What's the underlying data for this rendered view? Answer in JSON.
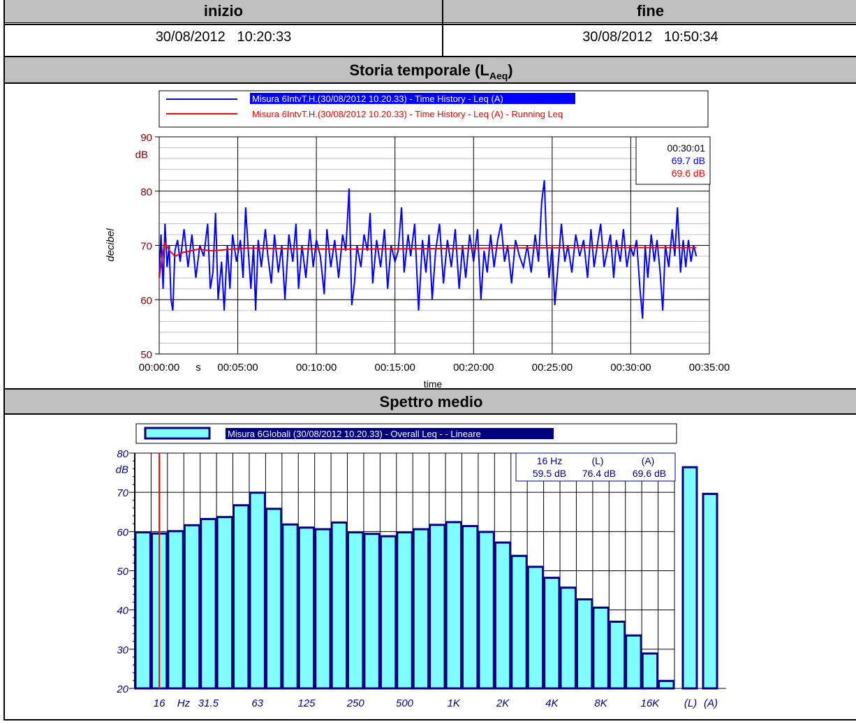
{
  "header": {
    "start_label": "inizio",
    "end_label": "fine",
    "start_value": "30/08/2012   10:20:33",
    "end_value": "30/08/2012   10:50:34"
  },
  "section1": {
    "title_main": "Storia temporale (L",
    "title_sub": "Aeq",
    "title_close": ")"
  },
  "section2": {
    "title": "Spettro medio"
  },
  "colors": {
    "blue": "#0000ff",
    "red": "#ff0000",
    "axis_dark_red": "#800000",
    "navy": "#000080",
    "bar_fill": "#80ffff",
    "header_gray": "#c0c0c0"
  },
  "chart_data": [
    {
      "type": "line",
      "xlabel": "time",
      "ylabel": "decibel",
      "y_unit": "dB",
      "ylim": [
        50,
        90
      ],
      "xlim_seconds": [
        0,
        2100
      ],
      "y_ticks": [
        "50",
        "60",
        "70",
        "80",
        "90"
      ],
      "x_ticks": [
        "00:00:00",
        "s",
        "00:05:00",
        "00:10:00",
        "00:15:00",
        "00:20:00",
        "00:25:00",
        "00:30:00",
        "00:35:00"
      ],
      "grid": true,
      "legend_position": "top",
      "series": [
        {
          "name": "Misura 6IntvT.H.(30/08/2012 10.20.33) - Time History - Leq (A)",
          "color": "#0000ff"
        },
        {
          "name": "Misura 6IntvT.H.(30/08/2012 10.20.33) - Time History - Leq (A) - Running Leq",
          "color": "#ff0000"
        }
      ],
      "blue_points": [
        [
          0,
          64
        ],
        [
          7,
          72
        ],
        [
          15,
          62
        ],
        [
          22,
          74
        ],
        [
          30,
          66
        ],
        [
          38,
          70
        ],
        [
          45,
          60
        ],
        [
          52,
          58
        ],
        [
          60,
          69
        ],
        [
          70,
          71
        ],
        [
          80,
          67
        ],
        [
          95,
          73
        ],
        [
          110,
          66
        ],
        [
          125,
          72
        ],
        [
          140,
          64
        ],
        [
          155,
          70
        ],
        [
          170,
          68
        ],
        [
          185,
          74
        ],
        [
          195,
          62
        ],
        [
          205,
          65
        ],
        [
          215,
          76
        ],
        [
          225,
          60
        ],
        [
          238,
          67
        ],
        [
          248,
          58
        ],
        [
          260,
          70
        ],
        [
          270,
          62
        ],
        [
          280,
          72
        ],
        [
          295,
          67
        ],
        [
          310,
          71
        ],
        [
          320,
          64
        ],
        [
          330,
          77
        ],
        [
          340,
          69
        ],
        [
          350,
          62
        ],
        [
          360,
          70
        ],
        [
          368,
          58
        ],
        [
          378,
          71
        ],
        [
          390,
          66
        ],
        [
          405,
          73
        ],
        [
          415,
          68
        ],
        [
          428,
          63
        ],
        [
          440,
          72
        ],
        [
          455,
          65
        ],
        [
          468,
          70
        ],
        [
          480,
          60
        ],
        [
          495,
          72
        ],
        [
          510,
          67
        ],
        [
          522,
          74
        ],
        [
          532,
          62
        ],
        [
          545,
          70
        ],
        [
          560,
          64
        ],
        [
          575,
          73
        ],
        [
          588,
          66
        ],
        [
          600,
          71
        ],
        [
          615,
          68
        ],
        [
          630,
          61
        ],
        [
          640,
          73
        ],
        [
          655,
          66
        ],
        [
          670,
          71
        ],
        [
          685,
          64
        ],
        [
          700,
          72
        ],
        [
          712,
          69
        ],
        [
          725,
          80.5
        ],
        [
          735,
          59
        ],
        [
          745,
          63
        ],
        [
          755,
          70
        ],
        [
          770,
          66
        ],
        [
          782,
          72
        ],
        [
          795,
          69
        ],
        [
          805,
          76
        ],
        [
          815,
          63
        ],
        [
          830,
          71
        ],
        [
          845,
          66
        ],
        [
          860,
          73
        ],
        [
          872,
          62
        ],
        [
          885,
          70
        ],
        [
          900,
          67
        ],
        [
          912,
          69
        ],
        [
          925,
          77
        ],
        [
          935,
          65
        ],
        [
          950,
          72
        ],
        [
          960,
          68
        ],
        [
          975,
          74
        ],
        [
          990,
          58
        ],
        [
          1005,
          71
        ],
        [
          1018,
          65
        ],
        [
          1030,
          72
        ],
        [
          1042,
          60
        ],
        [
          1055,
          69
        ],
        [
          1070,
          74
        ],
        [
          1085,
          63
        ],
        [
          1100,
          71
        ],
        [
          1115,
          66
        ],
        [
          1130,
          73
        ],
        [
          1145,
          62
        ],
        [
          1158,
          70
        ],
        [
          1170,
          64
        ],
        [
          1185,
          72
        ],
        [
          1200,
          67
        ],
        [
          1215,
          73
        ],
        [
          1228,
          60
        ],
        [
          1240,
          69
        ],
        [
          1252,
          65
        ],
        [
          1265,
          72
        ],
        [
          1278,
          66
        ],
        [
          1292,
          71
        ],
        [
          1305,
          74
        ],
        [
          1318,
          67
        ],
        [
          1330,
          70
        ],
        [
          1345,
          63
        ],
        [
          1360,
          71
        ],
        [
          1375,
          68
        ],
        [
          1390,
          66
        ],
        [
          1405,
          70
        ],
        [
          1420,
          65
        ],
        [
          1435,
          72
        ],
        [
          1448,
          67
        ],
        [
          1460,
          78
        ],
        [
          1470,
          82
        ],
        [
          1478,
          71
        ],
        [
          1488,
          64
        ],
        [
          1500,
          70
        ],
        [
          1510,
          59
        ],
        [
          1522,
          66
        ],
        [
          1535,
          74
        ],
        [
          1548,
          67
        ],
        [
          1560,
          70
        ],
        [
          1575,
          65
        ],
        [
          1590,
          72
        ],
        [
          1605,
          68
        ],
        [
          1620,
          71
        ],
        [
          1635,
          64
        ],
        [
          1648,
          73
        ],
        [
          1660,
          66
        ],
        [
          1672,
          70
        ],
        [
          1685,
          74
        ],
        [
          1698,
          66
        ],
        [
          1710,
          69
        ],
        [
          1722,
          72
        ],
        [
          1735,
          64
        ],
        [
          1745,
          71
        ],
        [
          1760,
          67
        ],
        [
          1772,
          73
        ],
        [
          1785,
          66
        ],
        [
          1798,
          70
        ],
        [
          1810,
          68
        ],
        [
          1822,
          71
        ],
        [
          1835,
          62
        ],
        [
          1845,
          56.5
        ],
        [
          1855,
          70
        ],
        [
          1865,
          64
        ],
        [
          1878,
          72
        ],
        [
          1890,
          67
        ],
        [
          1900,
          71
        ],
        [
          1912,
          65
        ],
        [
          1922,
          58
        ],
        [
          1932,
          70
        ],
        [
          1945,
          66
        ],
        [
          1958,
          73
        ],
        [
          1968,
          68
        ],
        [
          1978,
          77
        ],
        [
          1990,
          65
        ],
        [
          2000,
          71
        ],
        [
          2010,
          66
        ],
        [
          2020,
          71
        ],
        [
          2030,
          67
        ],
        [
          2040,
          70
        ],
        [
          2050,
          68
        ]
      ],
      "red_points": [
        [
          0,
          64
        ],
        [
          20,
          70.5
        ],
        [
          40,
          69
        ],
        [
          60,
          68
        ],
        [
          90,
          68.7
        ],
        [
          150,
          69.3
        ],
        [
          200,
          69
        ],
        [
          330,
          69.5
        ],
        [
          500,
          69.4
        ],
        [
          700,
          69.3
        ],
        [
          1000,
          69.4
        ],
        [
          1300,
          69.5
        ],
        [
          1600,
          69.6
        ],
        [
          1900,
          69.6
        ],
        [
          2050,
          69.6
        ]
      ],
      "readout": {
        "time": "00:30:01",
        "blue_value": "69.7 dB",
        "red_value": "69.6 dB"
      }
    },
    {
      "type": "bar",
      "title": "Spettro medio",
      "y_unit": "dB",
      "ylim": [
        20,
        80
      ],
      "y_ticks": [
        "20",
        "30",
        "40",
        "50",
        "60",
        "70",
        "80"
      ],
      "x_tick_labels": [
        "16",
        "Hz",
        "31.5",
        "63",
        "125",
        "250",
        "500",
        "1K",
        "2K",
        "4K",
        "8K",
        "16K",
        "(L)",
        "(A)"
      ],
      "legend_position": "top",
      "series": [
        {
          "name": "Misura 6Globali (30/08/2012 10.20.33) - Overall Leq -  - Lineare"
        }
      ],
      "bands": [
        "12.5",
        "16",
        "20",
        "25",
        "31.5",
        "40",
        "50",
        "63",
        "80",
        "100",
        "125",
        "160",
        "200",
        "250",
        "315",
        "400",
        "500",
        "630",
        "800",
        "1K",
        "1.25K",
        "1.6K",
        "2K",
        "2.5K",
        "3.15K",
        "4K",
        "5K",
        "6.3K",
        "8K",
        "10K",
        "12.5K",
        "16K",
        "20K"
      ],
      "values": [
        59.8,
        59.5,
        60.1,
        61.6,
        63.2,
        63.7,
        66.7,
        69.9,
        65.8,
        61.8,
        61.0,
        60.6,
        62.3,
        59.8,
        59.4,
        58.8,
        59.8,
        60.6,
        61.7,
        62.4,
        61.4,
        59.9,
        57.2,
        53.8,
        51.0,
        48.2,
        45.7,
        42.7,
        40.6,
        37.0,
        33.5,
        28.9,
        21.9
      ],
      "totals": [
        {
          "label": "(L)",
          "value": 76.4
        },
        {
          "label": "(A)",
          "value": 69.6
        }
      ],
      "cursor_band": "16",
      "readout": {
        "h1": "16 Hz",
        "h2": "(L)",
        "h3": "(A)",
        "v1": "59.5 dB",
        "v2": "76.4 dB",
        "v3": "69.6 dB"
      }
    }
  ]
}
